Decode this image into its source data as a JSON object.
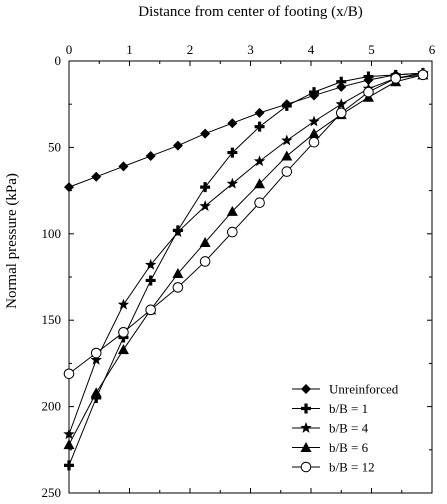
{
  "chart_data": {
    "type": "line",
    "title": "",
    "xlabel": "Distance from center of footing (x/B)",
    "ylabel": "Normal pressure    (kPa)",
    "x_axis_position": "top",
    "y_axis_inverted": true,
    "xlim": [
      0,
      6
    ],
    "ylim": [
      0,
      250
    ],
    "xticks": [
      0,
      1,
      2,
      3,
      4,
      5,
      6
    ],
    "yticks": [
      0,
      50,
      100,
      150,
      200,
      250
    ],
    "grid": false,
    "legend_position": "bottom-right",
    "series": [
      {
        "name": "Unreinforced",
        "marker": "diamond",
        "x": [
          0,
          0.45,
          0.9,
          1.35,
          1.8,
          2.25,
          2.7,
          3.15,
          3.6,
          4.05,
          4.5,
          4.95,
          5.4,
          5.85
        ],
        "y": [
          73,
          67,
          61,
          55,
          49,
          42,
          36,
          30,
          25,
          20,
          15,
          11,
          8,
          7
        ]
      },
      {
        "name": "b/B = 1",
        "marker": "plus",
        "x": [
          0,
          0.45,
          0.9,
          1.35,
          1.8,
          2.25,
          2.7,
          3.15,
          3.6,
          4.05,
          4.5,
          4.95,
          5.4,
          5.85
        ],
        "y": [
          234,
          195,
          160,
          127,
          98,
          73,
          53,
          38,
          26,
          18,
          12,
          9,
          8,
          7
        ]
      },
      {
        "name": "b/B = 4",
        "marker": "star",
        "x": [
          0,
          0.45,
          0.9,
          1.35,
          1.8,
          2.25,
          2.7,
          3.15,
          3.6,
          4.05,
          4.5,
          4.95,
          5.4,
          5.85
        ],
        "y": [
          216,
          173,
          141,
          118,
          99,
          84,
          71,
          58,
          46,
          35,
          25,
          16,
          10,
          7
        ]
      },
      {
        "name": "b/B = 6",
        "marker": "triangle",
        "x": [
          0,
          0.45,
          0.9,
          1.35,
          1.8,
          2.25,
          2.7,
          3.15,
          3.6,
          4.05,
          4.5,
          4.95,
          5.4,
          5.85
        ],
        "y": [
          222,
          192,
          167,
          144,
          123,
          105,
          87,
          71,
          55,
          42,
          31,
          21,
          12,
          8
        ]
      },
      {
        "name": "b/B = 12",
        "marker": "circle-open",
        "x": [
          0,
          0.45,
          0.9,
          1.35,
          1.8,
          2.25,
          2.7,
          3.15,
          3.6,
          4.05,
          4.5,
          4.95,
          5.4,
          5.85
        ],
        "y": [
          181,
          169,
          157,
          144,
          131,
          116,
          99,
          82,
          64,
          47,
          30,
          18,
          10,
          8
        ]
      }
    ]
  }
}
